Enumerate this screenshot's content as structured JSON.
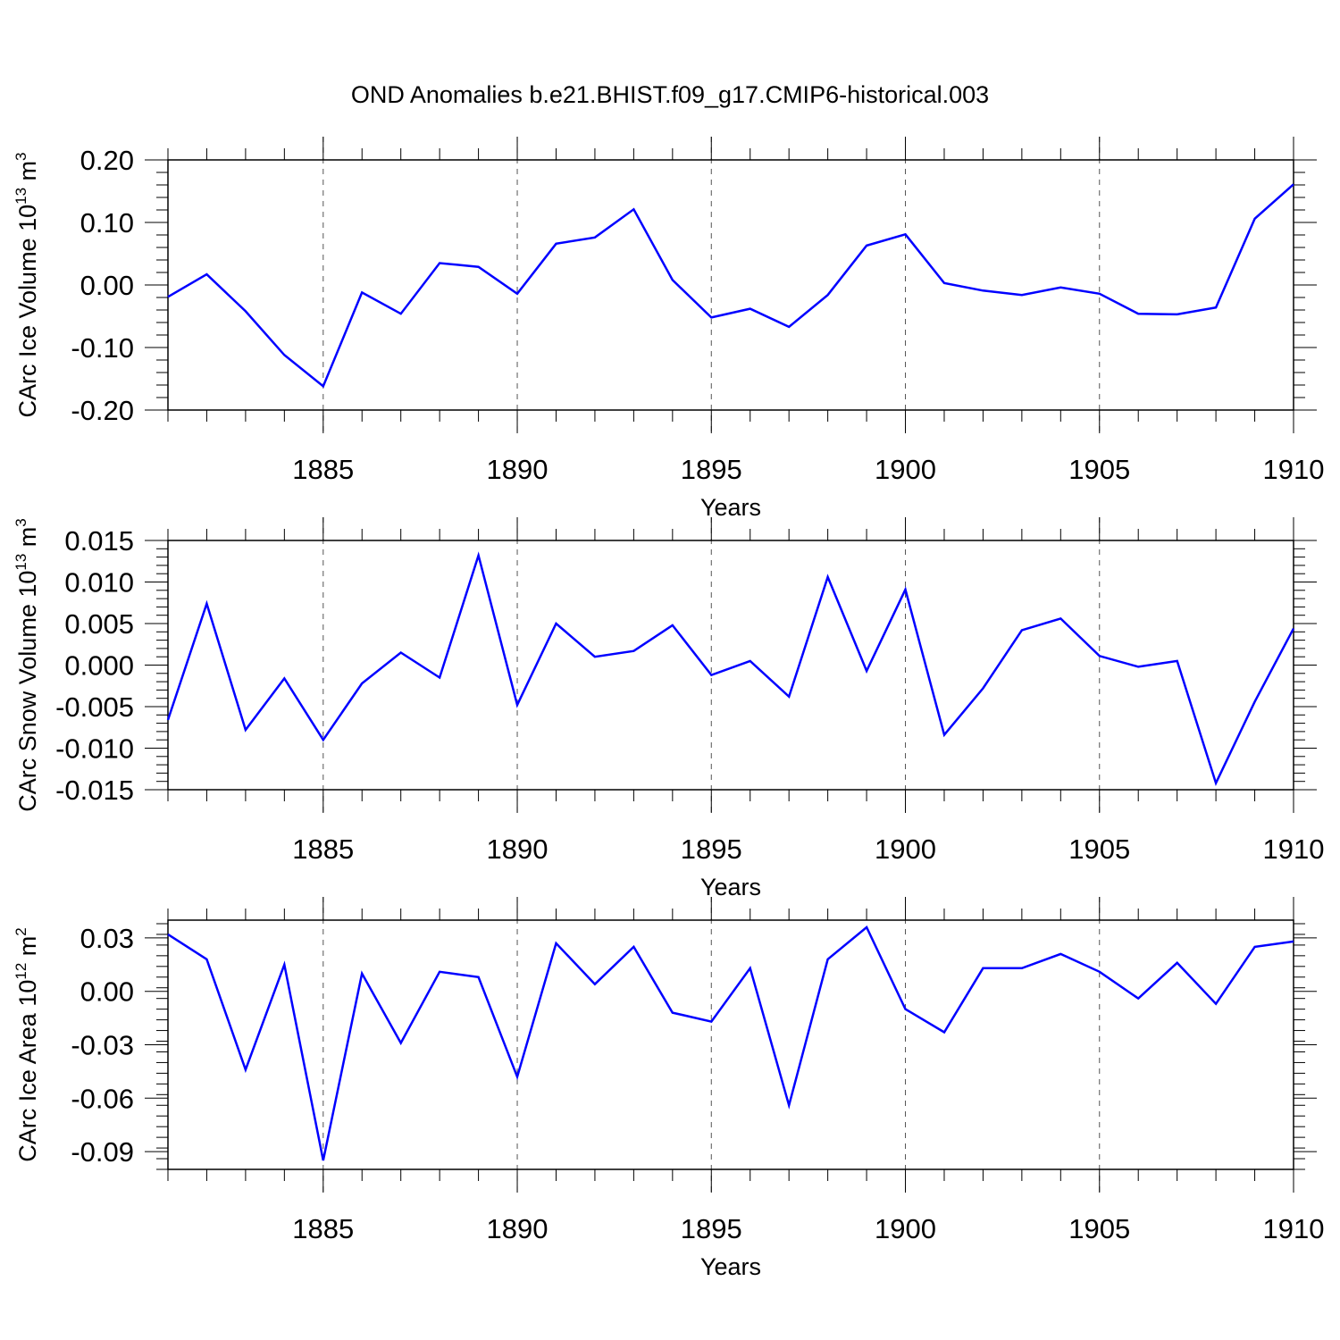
{
  "title": "OND Anomalies b.e21.BHIST.f09_g17.CMIP6-historical.003",
  "chart_data": [
    {
      "type": "line",
      "ylabel": "CArc Ice Volume 10",
      "ylabel_exp": "13",
      "ylabel_unit": " m",
      "ylabel_unit_exp": "3",
      "xlabel": "Years",
      "xlim": [
        1881,
        1910
      ],
      "ylim": [
        -0.2,
        0.2
      ],
      "yticks": [
        -0.2,
        -0.1,
        0.0,
        0.1,
        0.2
      ],
      "ytick_labels": [
        "-0.20",
        "-0.10",
        "0.00",
        "0.10",
        "0.20"
      ],
      "xticks": [
        1885,
        1890,
        1895,
        1900,
        1905,
        1910
      ],
      "xtick_labels": [
        "1885",
        "1890",
        "1895",
        "1900",
        "1905",
        "1910"
      ],
      "series": [
        {
          "color": "#0000ff",
          "x": [
            1881,
            1882,
            1883,
            1884,
            1885,
            1886,
            1887,
            1888,
            1889,
            1890,
            1891,
            1892,
            1893,
            1894,
            1895,
            1896,
            1897,
            1898,
            1899,
            1900,
            1901,
            1902,
            1903,
            1904,
            1905,
            1906,
            1907,
            1908,
            1909,
            1910
          ],
          "values": [
            -0.019,
            0.017,
            -0.042,
            -0.112,
            -0.162,
            -0.012,
            -0.046,
            0.035,
            0.029,
            -0.014,
            0.066,
            0.076,
            0.121,
            0.008,
            -0.052,
            -0.038,
            -0.067,
            -0.016,
            0.063,
            0.081,
            0.003,
            -0.009,
            -0.016,
            -0.004,
            -0.014,
            -0.046,
            -0.047,
            -0.036,
            0.106,
            0.161
          ]
        }
      ]
    },
    {
      "type": "line",
      "ylabel": "CArc Snow Volume 10",
      "ylabel_exp": "13",
      "ylabel_unit": " m",
      "ylabel_unit_exp": "3",
      "xlabel": "Years",
      "xlim": [
        1881,
        1910
      ],
      "ylim": [
        -0.015,
        0.015
      ],
      "yticks": [
        -0.015,
        -0.01,
        -0.005,
        0.0,
        0.005,
        0.01,
        0.015
      ],
      "ytick_labels": [
        "-0.015",
        "-0.010",
        "-0.005",
        "0.000",
        "0.005",
        "0.010",
        "0.015"
      ],
      "xticks": [
        1885,
        1890,
        1895,
        1900,
        1905,
        1910
      ],
      "xtick_labels": [
        "1885",
        "1890",
        "1895",
        "1900",
        "1905",
        "1910"
      ],
      "series": [
        {
          "color": "#0000ff",
          "x": [
            1881,
            1882,
            1883,
            1884,
            1885,
            1886,
            1887,
            1888,
            1889,
            1890,
            1891,
            1892,
            1893,
            1894,
            1895,
            1896,
            1897,
            1898,
            1899,
            1900,
            1901,
            1902,
            1903,
            1904,
            1905,
            1906,
            1907,
            1908,
            1909,
            1910
          ],
          "values": [
            -0.0066,
            0.0074,
            -0.0078,
            -0.0016,
            -0.009,
            -0.0022,
            0.0015,
            -0.0015,
            0.0132,
            -0.0048,
            0.005,
            0.001,
            0.0017,
            0.0048,
            -0.0012,
            0.0005,
            -0.0038,
            0.0106,
            -0.0007,
            0.0091,
            -0.0084,
            -0.0028,
            0.0042,
            0.0056,
            0.0011,
            -0.0002,
            0.0005,
            -0.0142,
            -0.0044,
            0.0044
          ]
        }
      ]
    },
    {
      "type": "line",
      "ylabel": "CArc Ice Area 10",
      "ylabel_exp": "12",
      "ylabel_unit": " m",
      "ylabel_unit_exp": "2",
      "xlabel": "Years",
      "xlim": [
        1881,
        1910
      ],
      "ylim": [
        -0.1,
        0.04
      ],
      "yticks": [
        -0.09,
        -0.06,
        -0.03,
        0.0,
        0.03
      ],
      "ytick_labels": [
        "-0.09",
        "-0.06",
        "-0.03",
        "0.00",
        "0.03"
      ],
      "xticks": [
        1885,
        1890,
        1895,
        1900,
        1905,
        1910
      ],
      "xtick_labels": [
        "1885",
        "1890",
        "1895",
        "1900",
        "1905",
        "1910"
      ],
      "series": [
        {
          "color": "#0000ff",
          "x": [
            1881,
            1882,
            1883,
            1884,
            1885,
            1886,
            1887,
            1888,
            1889,
            1890,
            1891,
            1892,
            1893,
            1894,
            1895,
            1896,
            1897,
            1898,
            1899,
            1900,
            1901,
            1902,
            1903,
            1904,
            1905,
            1906,
            1907,
            1908,
            1909,
            1910
          ],
          "values": [
            0.032,
            0.018,
            -0.044,
            0.015,
            -0.095,
            0.01,
            -0.029,
            0.011,
            0.008,
            -0.048,
            0.027,
            0.004,
            0.025,
            -0.012,
            -0.017,
            0.013,
            -0.064,
            0.018,
            0.036,
            -0.01,
            -0.023,
            0.013,
            0.013,
            0.021,
            0.011,
            -0.004,
            0.016,
            -0.007,
            0.025,
            0.028
          ]
        }
      ]
    }
  ]
}
